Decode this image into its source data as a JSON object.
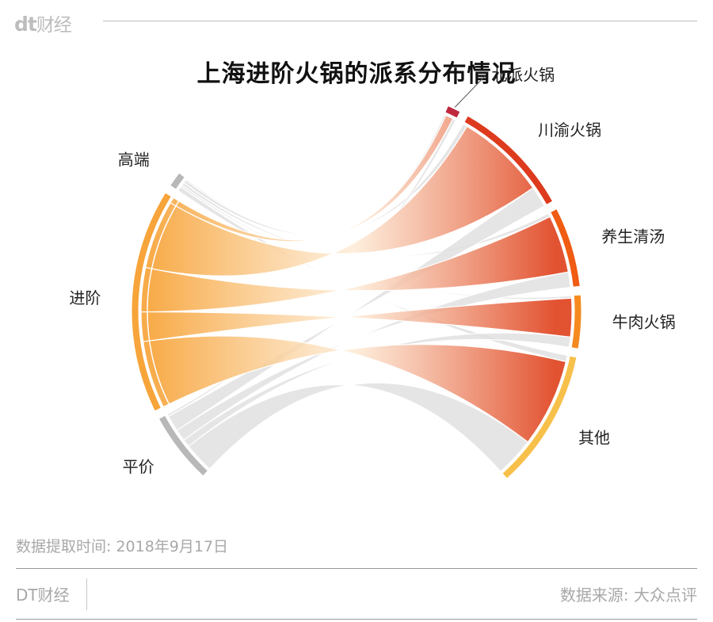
{
  "header": {
    "logo_mark": "dt",
    "logo_text": "财经"
  },
  "title": "上海进阶火锅的派系分布情况",
  "chart_data": {
    "type": "chord",
    "left_groups": [
      {
        "name": "高端",
        "value": 3,
        "color": "#b8b8b8"
      },
      {
        "name": "进阶",
        "value": 44,
        "color": "#f7a43a"
      },
      {
        "name": "平价",
        "value": 14,
        "color": "#b8b8b8"
      }
    ],
    "right_groups": [
      {
        "name": "北派火锅",
        "value": 2,
        "color": "#c0283d"
      },
      {
        "name": "川渝火锅",
        "value": 18,
        "color": "#dd3a1e"
      },
      {
        "name": "养生清汤",
        "value": 12,
        "color": "#ef5c12"
      },
      {
        "name": "牛肉火锅",
        "value": 8,
        "color": "#f58a1f"
      },
      {
        "name": "其他",
        "value": 21,
        "color": "#f7c04a"
      }
    ],
    "flows": [
      {
        "from": "高端",
        "to": "北派火锅",
        "value": 0.3
      },
      {
        "from": "高端",
        "to": "川渝火锅",
        "value": 0.7
      },
      {
        "from": "高端",
        "to": "养生清汤",
        "value": 0.6
      },
      {
        "from": "高端",
        "to": "牛肉火锅",
        "value": 0.4
      },
      {
        "from": "高端",
        "to": "其他",
        "value": 1.0
      },
      {
        "from": "进阶",
        "to": "北派火锅",
        "value": 1.2
      },
      {
        "from": "进阶",
        "to": "川渝火锅",
        "value": 14.0
      },
      {
        "from": "进阶",
        "to": "养生清汤",
        "value": 9.0
      },
      {
        "from": "进阶",
        "to": "牛肉火锅",
        "value": 6.0
      },
      {
        "from": "进阶",
        "to": "其他",
        "value": 13.8
      },
      {
        "from": "平价",
        "to": "北派火锅",
        "value": 0.5
      },
      {
        "from": "平价",
        "to": "川渝火锅",
        "value": 3.3
      },
      {
        "from": "平价",
        "to": "养生清汤",
        "value": 2.4
      },
      {
        "from": "平价",
        "to": "牛肉火锅",
        "value": 1.6
      },
      {
        "from": "平价",
        "to": "其他",
        "value": 6.2
      }
    ],
    "highlight_group": "进阶",
    "muted_flow_color": "#e1e1e1"
  },
  "footer": {
    "date_text": "数据提取时间: 2018年9月17日",
    "brand": "DT财经",
    "source": "数据来源: 大众点评"
  }
}
